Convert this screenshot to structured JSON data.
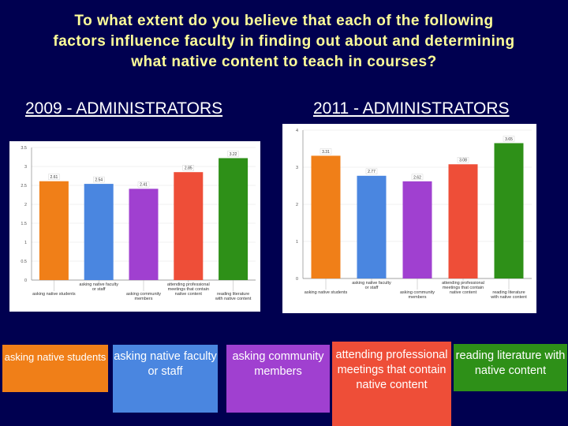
{
  "title": {
    "line1": "To what extent do you believe that each of the following",
    "line2": "factors influence faculty in finding out about and determining",
    "line3": "what native content to teach in courses?"
  },
  "headers": {
    "left": "2009 -  ADMINISTRATORS",
    "right": "2011 - ADMINISTRATORS"
  },
  "colors": {
    "orange": "#f07f18",
    "blue": "#4a86e0",
    "purple": "#a040d0",
    "red": "#ee4e38",
    "green": "#2e9018"
  },
  "legend": [
    "asking native students",
    "asking native faculty or staff",
    "asking community members",
    "attending professional meetings that contain native content",
    "reading literature with native content"
  ],
  "chart_data": [
    {
      "type": "bar",
      "categories": [
        "asking native students",
        "asking native faculty or staff",
        "asking community members",
        "attending professional meetings that contain native content",
        "reading literature with native content"
      ],
      "values": [
        2.61,
        2.54,
        2.41,
        2.85,
        3.22
      ],
      "value_labels": [
        "2.61",
        "2.54",
        "2.41",
        "2.85",
        "3.22"
      ],
      "x_labels": [
        "asking native students",
        "asking native faculty or staff",
        "asking community members",
        "attending professional meetings that contain native content",
        "reading literature with native content"
      ],
      "ylim": [
        0,
        3.5
      ],
      "yticks": [
        0,
        0.5,
        1,
        1.5,
        2,
        2.5,
        3,
        3.5
      ],
      "ytick_labels": [
        "0",
        "0.5",
        "1",
        "1.5",
        "2",
        "2.5",
        "3",
        "3.5"
      ],
      "grid": true
    },
    {
      "type": "bar",
      "categories": [
        "asking native students",
        "asking native faculty or staff",
        "asking community members",
        "attending professional meetings that contain native content",
        "reading literature with native content"
      ],
      "values": [
        3.31,
        2.77,
        2.62,
        3.08,
        3.65
      ],
      "value_labels": [
        "3.31",
        "2.77",
        "2.62",
        "3.08",
        "3.65"
      ],
      "x_labels": [
        "asking native students",
        "asking native faculty or staff",
        "asking community members",
        "attending professional meetings that contain native content",
        "reading literature with native content"
      ],
      "ylim": [
        0,
        4
      ],
      "yticks": [
        0,
        1,
        2,
        3,
        4
      ],
      "ytick_labels": [
        "0",
        "1",
        "2",
        "3",
        "4"
      ],
      "grid": true
    }
  ]
}
